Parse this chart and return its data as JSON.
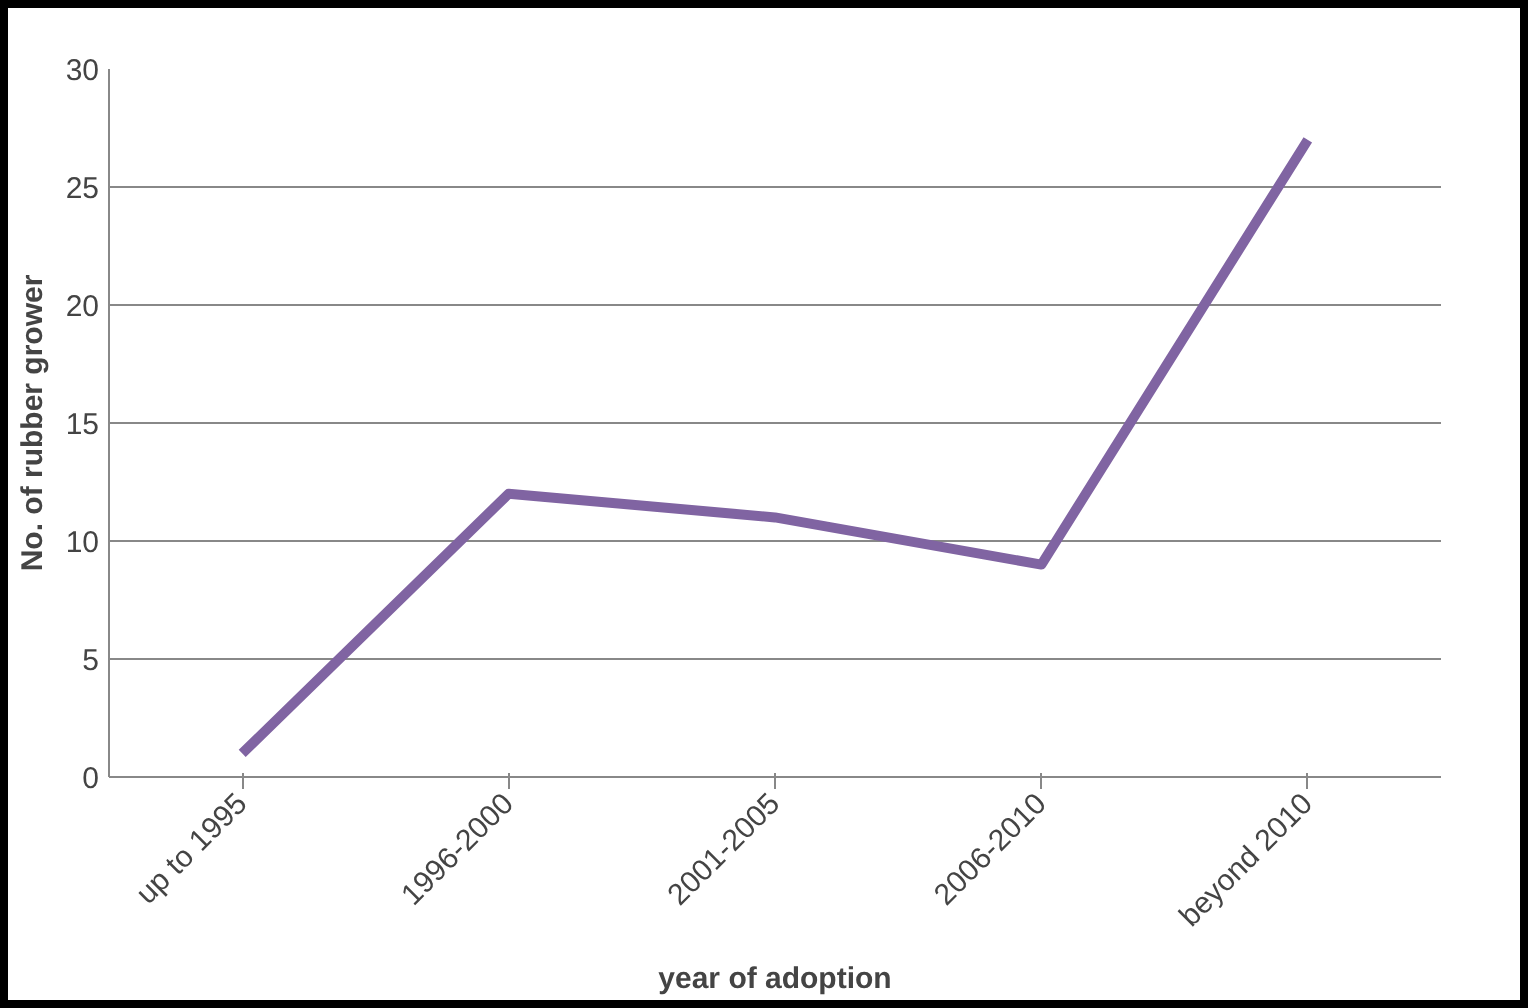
{
  "chart_data": {
    "type": "line",
    "xlabel": "year of adoption",
    "ylabel": "No. of rubber grower",
    "categories": [
      "up to 1995",
      "1996-2000",
      "2001-2005",
      "2006-2010",
      "beyond 2010"
    ],
    "series": [
      {
        "color": "#8064a2",
        "values": [
          1,
          12,
          11,
          9,
          27
        ]
      }
    ],
    "ylim": [
      0,
      30
    ],
    "yticks": [
      0,
      5,
      10,
      15,
      20,
      25,
      30
    ],
    "grid": "y",
    "marker": "none",
    "line_style": "solid"
  }
}
